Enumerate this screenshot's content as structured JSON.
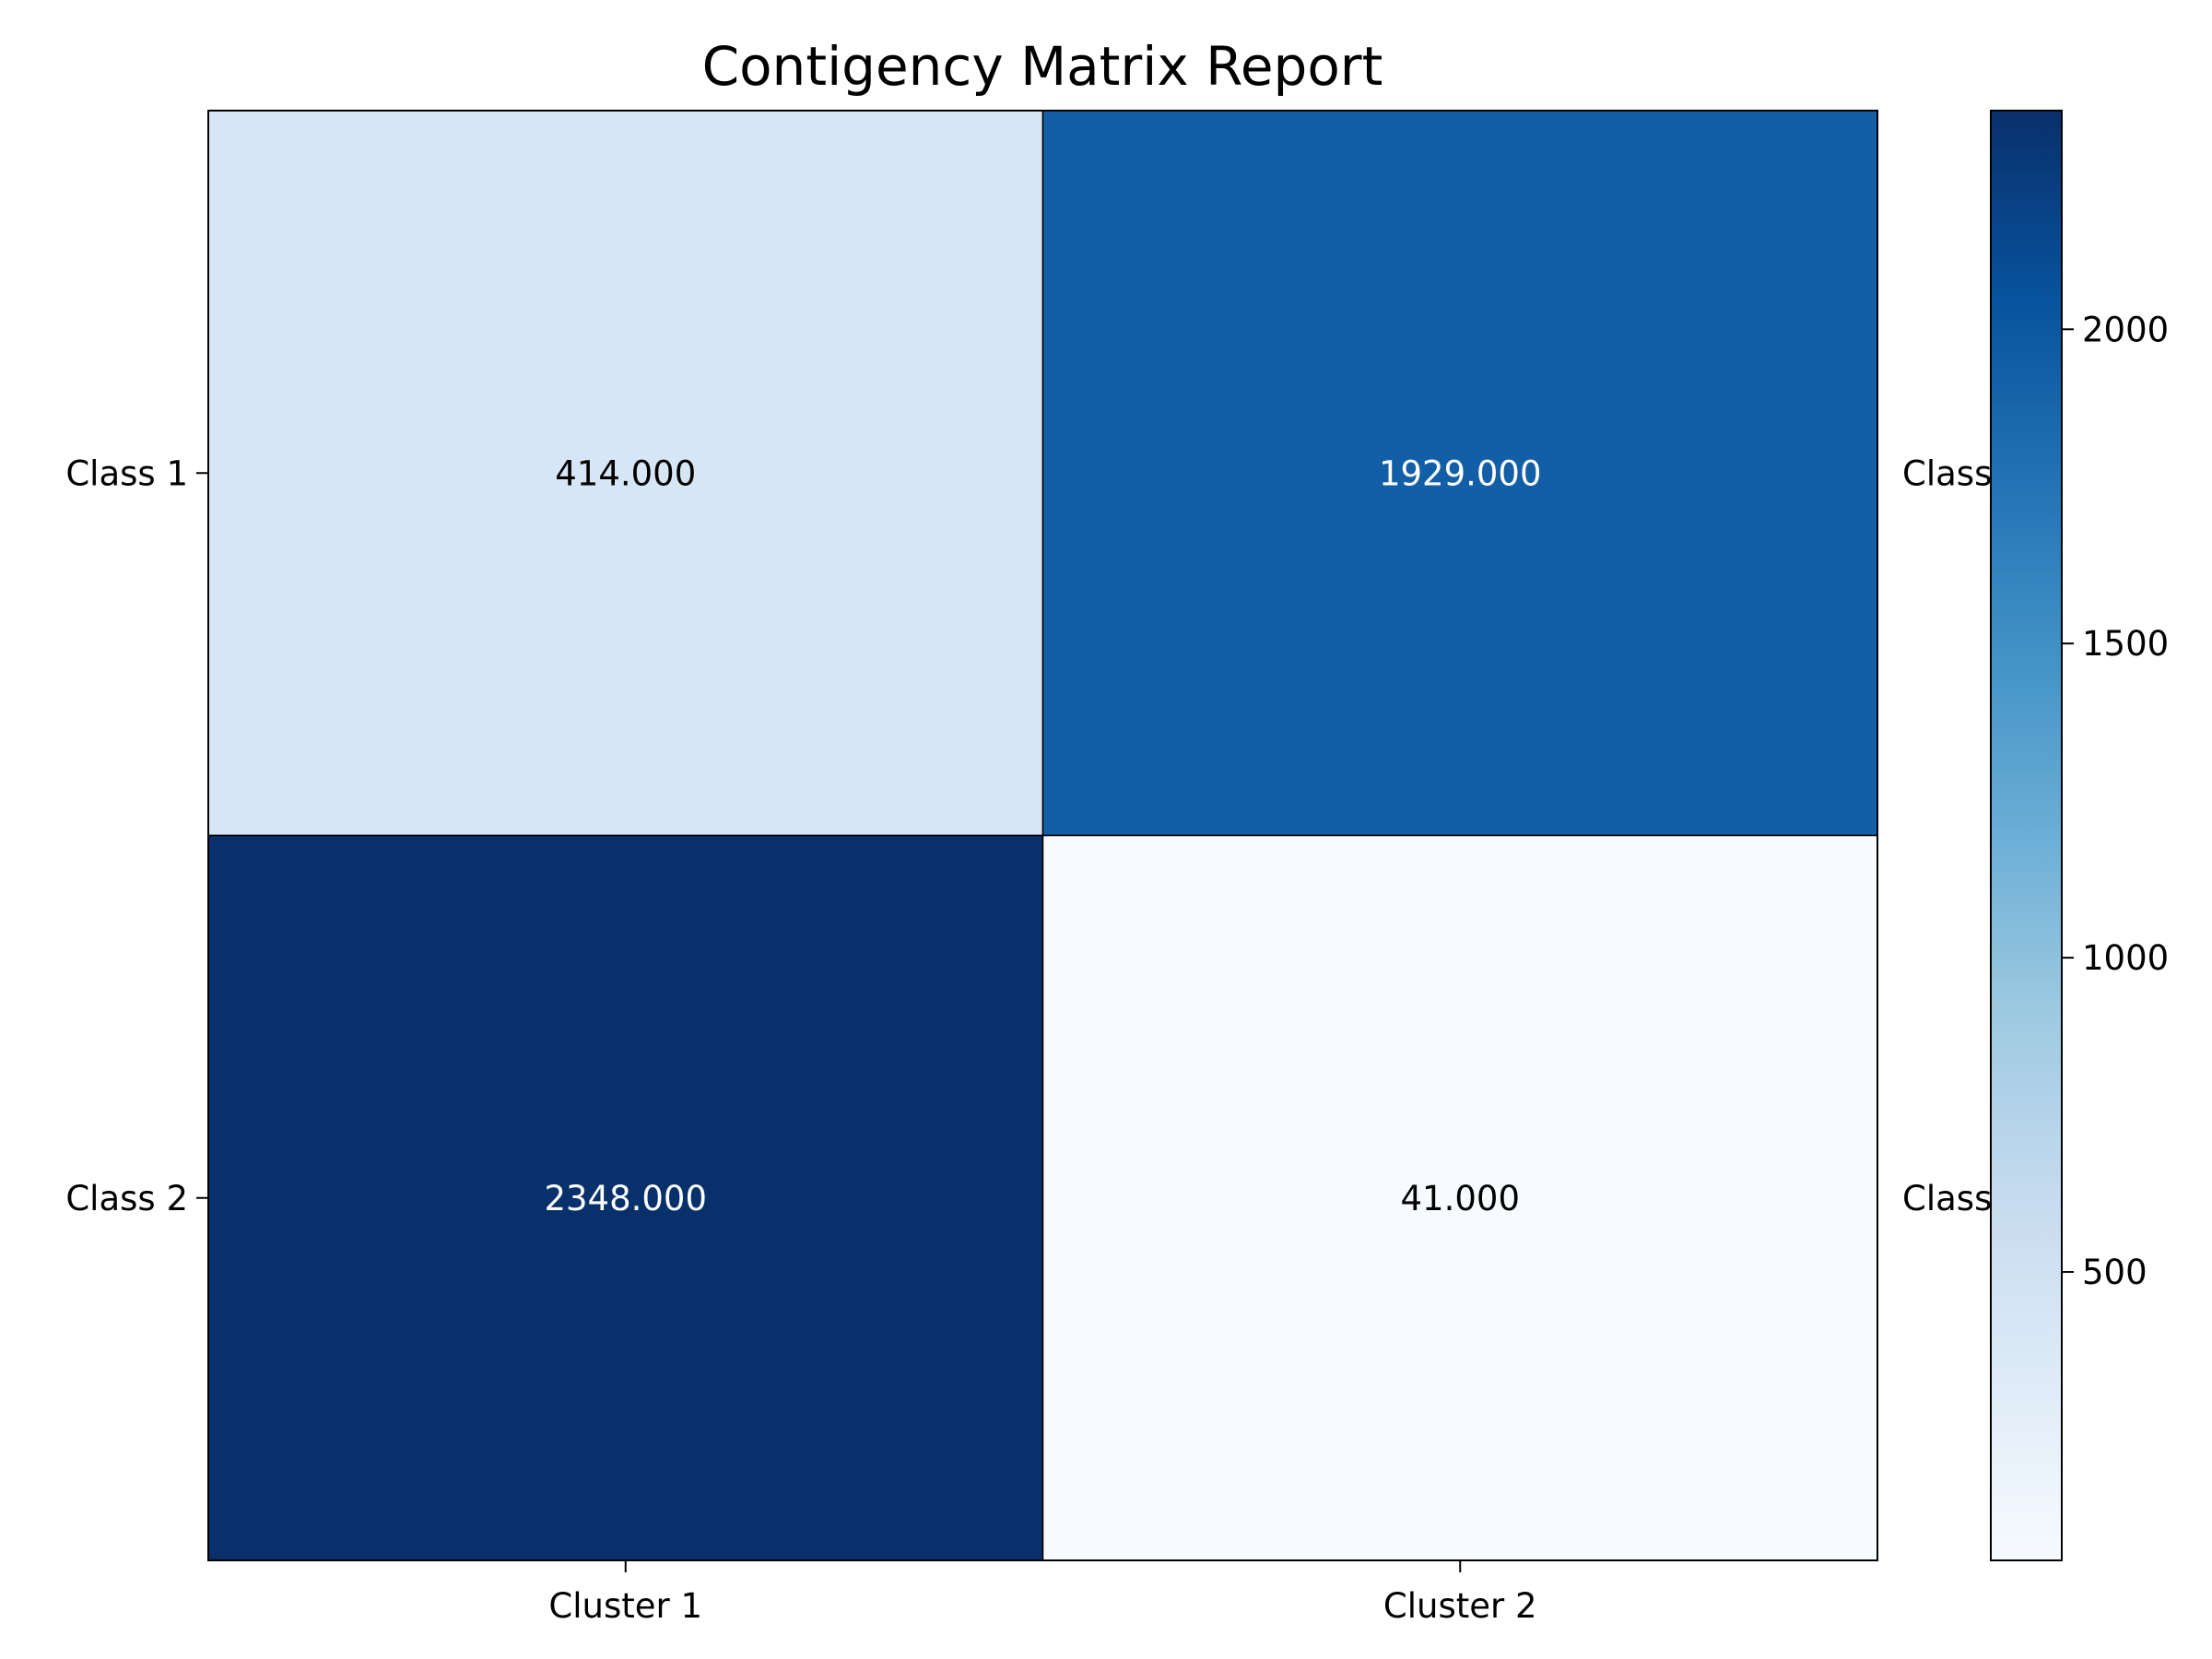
{
  "chart_data": {
    "type": "heatmap",
    "title": "Contigency Matrix Report",
    "colormap": "Blues",
    "rows": [
      "Class 1",
      "Class 2"
    ],
    "right_labels": [
      "Class",
      "Class"
    ],
    "columns": [
      "Cluster 1",
      "Cluster 2"
    ],
    "values": [
      [
        414,
        1929
      ],
      [
        2348,
        41
      ]
    ],
    "value_labels": [
      [
        "414.000",
        "1929.000"
      ],
      [
        "2348.000",
        "41.000"
      ]
    ],
    "text_colors": [
      [
        "#000000",
        "#ffffff"
      ],
      [
        "#ffffff",
        "#000000"
      ]
    ],
    "vmin": 41,
    "vmax": 2348,
    "colorbar": {
      "ticks": [
        500,
        1000,
        1500,
        2000
      ],
      "tick_labels": [
        "500",
        "1000",
        "1500",
        "2000"
      ]
    },
    "grid": false,
    "legend": "colorbar-right"
  }
}
